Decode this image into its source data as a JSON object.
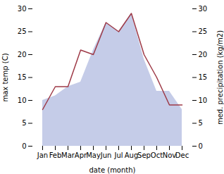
{
  "chart_data": {
    "type": "line",
    "xlabel": "date (month)",
    "ylabel": "max temp (C)",
    "y2label": "med. precipitation (kg/m2)",
    "categories": [
      "Jan",
      "Feb",
      "Mar",
      "Apr",
      "May",
      "Jun",
      "Jul",
      "Aug",
      "Sep",
      "Oct",
      "Nov",
      "Dec"
    ],
    "series": [
      {
        "type": "area",
        "axis": "y2",
        "color": "#c5cce8",
        "values": [
          10,
          11,
          13,
          14,
          21,
          27,
          25,
          29,
          19,
          12,
          12,
          8
        ]
      },
      {
        "type": "line",
        "color": "#9e3a47",
        "values": [
          8,
          13,
          13,
          21,
          20,
          27,
          25,
          29,
          20,
          15,
          9,
          9
        ]
      }
    ],
    "ylim": [
      0,
      30
    ],
    "yticks": [
      0,
      5,
      10,
      15,
      20,
      25,
      30
    ],
    "y2lim": [
      0,
      30
    ],
    "y2ticks": [
      0,
      5,
      10,
      15,
      20,
      25,
      30
    ],
    "grid": false
  }
}
